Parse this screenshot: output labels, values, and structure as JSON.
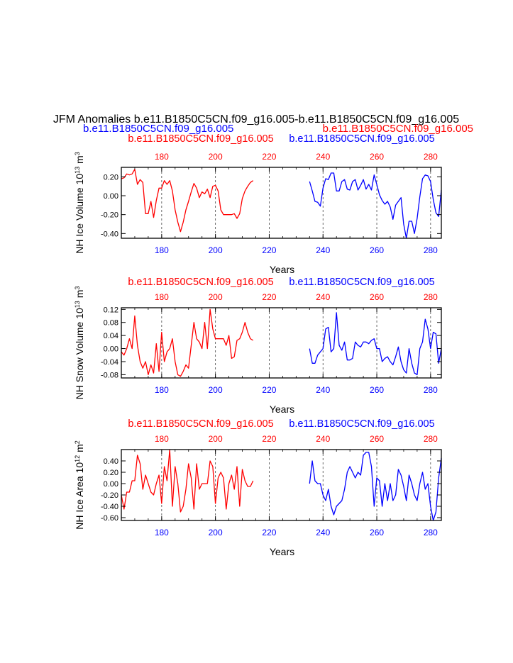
{
  "figure": {
    "title": "JFM Anomalies b.e11.B1850C5CN.f09_g16.005-b.e11.B1850C5CN.f09_g16.005",
    "subtitle_left": "b.e11.B1850C5CN.f09_g16.005",
    "subtitle_right": "b.e11.B1850C5CN.f09_g16.005",
    "colors": {
      "red": "#ff0000",
      "blue": "#0000ff",
      "black": "#000000"
    }
  },
  "chart_data": [
    {
      "type": "line",
      "ylabel": "NH Ice Volume 10",
      "ylabel_exp": "13",
      "ylabel_unit": " m",
      "ylabel_unit_exp": "3",
      "xlabel": "Years",
      "red_case": "b.e11.B1850C5CN.f09_g16.005",
      "blue_case": "b.e11.B1850C5CN.f09_g16.005",
      "xlim": [
        165,
        284
      ],
      "ylim": [
        -0.45,
        0.3
      ],
      "yticks": [
        0.2,
        0.0,
        -0.2,
        -0.4
      ],
      "ytick_labels": [
        "0.20",
        "0.00",
        "-0.20",
        "-0.40"
      ],
      "red_ticks": [
        180,
        200,
        220,
        240,
        260,
        280
      ],
      "red_tick_labels": [
        "180",
        "200",
        "220",
        "240",
        "260",
        "280"
      ],
      "blue_ticks": [
        180,
        200,
        220,
        240,
        260,
        280
      ],
      "blue_tick_labels": [
        "180",
        "200",
        "220",
        "240",
        "260",
        "280"
      ],
      "gridlines": [
        180,
        200,
        220,
        240,
        260,
        280
      ],
      "series": [
        {
          "name": "b.e11.B1850C5CN.f09_g16.005",
          "color": "#ff0000",
          "x": [
            165,
            166,
            167,
            168,
            169,
            170,
            171,
            172,
            173,
            174,
            175,
            176,
            177,
            178,
            179,
            180,
            181,
            182,
            183,
            184,
            185,
            186,
            187,
            188,
            189,
            190,
            191,
            192,
            193,
            194,
            195,
            196,
            197,
            198,
            199,
            200,
            201,
            202,
            203,
            204,
            205,
            206,
            207,
            208,
            209,
            210,
            211,
            212,
            213,
            214
          ],
          "values": [
            0.18,
            0.19,
            0.23,
            0.22,
            0.23,
            0.28,
            0.12,
            0.17,
            0.14,
            -0.19,
            -0.19,
            -0.06,
            -0.23,
            -0.05,
            0.08,
            0.08,
            0.16,
            0.12,
            0.16,
            0.05,
            -0.15,
            -0.28,
            -0.38,
            -0.28,
            -0.15,
            -0.06,
            0.04,
            0.13,
            0.08,
            -0.02,
            0.04,
            0.02,
            0.07,
            -0.02,
            0.1,
            0.11,
            0.05,
            -0.15,
            -0.2,
            -0.2,
            -0.2,
            -0.2,
            -0.19,
            -0.24,
            -0.19,
            -0.03,
            0.05,
            0.1,
            0.14,
            0.16
          ]
        },
        {
          "name": "b.e11.B1850C5CN.f09_g16.005",
          "color": "#0000ff",
          "x": [
            235,
            236,
            237,
            238,
            239,
            240,
            241,
            242,
            243,
            244,
            245,
            246,
            247,
            248,
            249,
            250,
            251,
            252,
            253,
            254,
            255,
            256,
            257,
            258,
            259,
            260,
            261,
            262,
            263,
            264,
            265,
            266,
            267,
            268,
            269,
            270,
            271,
            272,
            273,
            274,
            275,
            276,
            277,
            278,
            279,
            280,
            281,
            282,
            283,
            284
          ],
          "values": [
            0.15,
            0.05,
            -0.06,
            -0.07,
            -0.11,
            0.08,
            0.18,
            0.17,
            0.24,
            0.24,
            0.05,
            0.05,
            0.15,
            0.17,
            0.07,
            0.06,
            0.15,
            0.17,
            0.06,
            0.11,
            0.17,
            0.07,
            0.12,
            0.06,
            0.22,
            0.12,
            0.01,
            -0.05,
            -0.09,
            -0.06,
            -0.12,
            -0.25,
            -0.1,
            -0.06,
            -0.02,
            -0.3,
            -0.45,
            -0.27,
            -0.27,
            -0.4,
            -0.24,
            -0.01,
            0.18,
            0.22,
            0.21,
            0.15,
            -0.04,
            -0.18,
            -0.22,
            0.06
          ]
        }
      ]
    },
    {
      "type": "line",
      "ylabel": "NH Snow Volume 10",
      "ylabel_exp": "13",
      "ylabel_unit": " m",
      "ylabel_unit_exp": "3",
      "xlabel": "Years",
      "red_case": "b.e11.B1850C5CN.f09_g16.005",
      "blue_case": "b.e11.B1850C5CN.f09_g16.005",
      "xlim": [
        165,
        284
      ],
      "ylim": [
        -0.09,
        0.125
      ],
      "yticks": [
        0.12,
        0.08,
        0.04,
        0.0,
        -0.04,
        -0.08
      ],
      "ytick_labels": [
        "0.12",
        "0.08",
        "0.04",
        "0.00",
        "-0.04",
        "-0.08"
      ],
      "red_ticks": [
        180,
        200,
        220,
        240,
        260,
        280
      ],
      "red_tick_labels": [
        "180",
        "200",
        "220",
        "240",
        "260",
        "280"
      ],
      "blue_ticks": [
        180,
        200,
        220,
        240,
        260,
        280
      ],
      "blue_tick_labels": [
        "180",
        "200",
        "220",
        "240",
        "260",
        "280"
      ],
      "gridlines": [
        180,
        200,
        220,
        240,
        260,
        280
      ],
      "series": [
        {
          "name": "b.e11.B1850C5CN.f09_g16.005",
          "color": "#ff0000",
          "x": [
            165,
            166,
            167,
            168,
            169,
            170,
            171,
            172,
            173,
            174,
            175,
            176,
            177,
            178,
            179,
            180,
            181,
            182,
            183,
            184,
            185,
            186,
            187,
            188,
            189,
            190,
            191,
            192,
            193,
            194,
            195,
            196,
            197,
            198,
            199,
            200,
            201,
            202,
            203,
            204,
            205,
            206,
            207,
            208,
            209,
            210,
            211,
            212,
            213,
            214
          ],
          "values": [
            -0.01,
            -0.02,
            0.0,
            0.03,
            0.0,
            0.1,
            0.01,
            -0.04,
            -0.06,
            -0.04,
            -0.08,
            -0.05,
            -0.075,
            0.015,
            -0.07,
            0.05,
            -0.04,
            -0.01,
            0.0,
            0.03,
            -0.04,
            -0.08,
            -0.085,
            -0.07,
            -0.05,
            -0.06,
            0.01,
            0.08,
            0.03,
            0.02,
            0.0,
            0.08,
            0.0,
            0.12,
            0.06,
            0.03,
            0.03,
            0.03,
            0.03,
            0.01,
            0.04,
            -0.03,
            -0.025,
            0.025,
            0.03,
            0.05,
            0.08,
            0.05,
            0.03,
            0.025
          ]
        },
        {
          "name": "b.e11.B1850C5CN.f09_g16.005",
          "color": "#0000ff",
          "x": [
            235,
            236,
            237,
            238,
            239,
            240,
            241,
            242,
            243,
            244,
            245,
            246,
            247,
            248,
            249,
            250,
            251,
            252,
            253,
            254,
            255,
            256,
            257,
            258,
            259,
            260,
            261,
            262,
            263,
            264,
            265,
            266,
            267,
            268,
            269,
            270,
            271,
            272,
            273,
            274,
            275,
            276,
            277,
            278,
            279,
            280,
            281,
            282,
            283,
            284
          ],
          "values": [
            0.0,
            -0.045,
            -0.045,
            -0.02,
            -0.01,
            0.0,
            0.06,
            0.065,
            -0.01,
            0.0,
            0.11,
            0.01,
            -0.005,
            0.02,
            -0.035,
            -0.035,
            -0.03,
            0.02,
            0.01,
            0.005,
            0.02,
            0.02,
            0.015,
            0.025,
            0.03,
            0.0,
            0.0,
            -0.04,
            -0.03,
            -0.025,
            -0.04,
            -0.05,
            -0.025,
            0.005,
            -0.04,
            -0.065,
            -0.075,
            0.0,
            -0.045,
            -0.075,
            -0.08,
            0.0,
            0.02,
            0.09,
            0.06,
            0.0,
            0.05,
            0.045,
            -0.045,
            0.0
          ]
        }
      ]
    },
    {
      "type": "line",
      "ylabel": "NH Ice Area 10",
      "ylabel_exp": "12",
      "ylabel_unit": " m",
      "ylabel_unit_exp": "2",
      "xlabel": "Years",
      "red_case": "b.e11.B1850C5CN.f09_g16.005",
      "blue_case": "b.e11.B1850C5CN.f09_g16.005",
      "xlim": [
        165,
        284
      ],
      "ylim": [
        -0.65,
        0.6
      ],
      "yticks": [
        0.4,
        0.2,
        0.0,
        -0.2,
        -0.4,
        -0.6
      ],
      "ytick_labels": [
        "0.40",
        "0.20",
        "0.00",
        "-0.20",
        "-0.40",
        "-0.60"
      ],
      "red_ticks": [
        180,
        200,
        220,
        240,
        260,
        280
      ],
      "red_tick_labels": [
        "180",
        "200",
        "220",
        "240",
        "260",
        "280"
      ],
      "blue_ticks": [
        180,
        200,
        220,
        240,
        260,
        280
      ],
      "blue_tick_labels": [
        "180",
        "200",
        "220",
        "240",
        "260",
        "280"
      ],
      "gridlines": [
        180,
        200,
        220,
        240,
        260,
        280
      ],
      "series": [
        {
          "name": "b.e11.B1850C5CN.f09_g16.005",
          "color": "#ff0000",
          "x": [
            165,
            166,
            167,
            168,
            169,
            170,
            171,
            172,
            173,
            174,
            175,
            176,
            177,
            178,
            179,
            180,
            181,
            182,
            183,
            184,
            185,
            186,
            187,
            188,
            189,
            190,
            191,
            192,
            193,
            194,
            195,
            196,
            197,
            198,
            199,
            200,
            201,
            202,
            203,
            204,
            205,
            206,
            207,
            208,
            209,
            210,
            211,
            212,
            213,
            214
          ],
          "values": [
            -0.2,
            -0.45,
            -0.15,
            -0.15,
            0.05,
            0.05,
            0.5,
            0.35,
            -0.1,
            0.15,
            0.0,
            -0.15,
            -0.2,
            0.0,
            0.15,
            -0.35,
            0.3,
            0.05,
            0.6,
            -0.4,
            0.3,
            0.0,
            -0.5,
            -0.4,
            -0.1,
            0.35,
            0.1,
            -0.45,
            0.35,
            -0.1,
            0.0,
            0.0,
            0.0,
            0.4,
            0.3,
            -0.35,
            0.1,
            0.2,
            0.1,
            -0.45,
            0.0,
            0.15,
            -0.1,
            0.3,
            -0.4,
            0.25,
            0.05,
            -0.05,
            -0.05,
            0.05
          ]
        },
        {
          "name": "b.e11.B1850C5CN.f09_g16.005",
          "color": "#0000ff",
          "x": [
            235,
            236,
            237,
            238,
            239,
            240,
            241,
            242,
            243,
            244,
            245,
            246,
            247,
            248,
            249,
            250,
            251,
            252,
            253,
            254,
            255,
            256,
            257,
            258,
            259,
            260,
            261,
            262,
            263,
            264,
            265,
            266,
            267,
            268,
            269,
            270,
            271,
            272,
            273,
            274,
            275,
            276,
            277,
            278,
            279,
            280,
            281,
            282,
            283,
            284
          ],
          "values": [
            0.0,
            0.4,
            0.05,
            0.0,
            0.0,
            -0.2,
            -0.3,
            -0.1,
            -0.4,
            -0.55,
            -0.4,
            -0.35,
            -0.3,
            -0.1,
            0.2,
            0.3,
            0.2,
            0.1,
            0.2,
            0.15,
            0.5,
            0.55,
            0.55,
            0.3,
            -0.4,
            0.1,
            0.05,
            -0.4,
            0.0,
            -0.3,
            0.0,
            -0.3,
            -0.2,
            0.25,
            0.15,
            -0.05,
            -0.3,
            0.15,
            0.0,
            -0.2,
            -0.3,
            0.0,
            0.2,
            -0.1,
            0.0,
            -0.4,
            -0.65,
            -0.5,
            0.1,
            0.45
          ]
        }
      ]
    }
  ]
}
